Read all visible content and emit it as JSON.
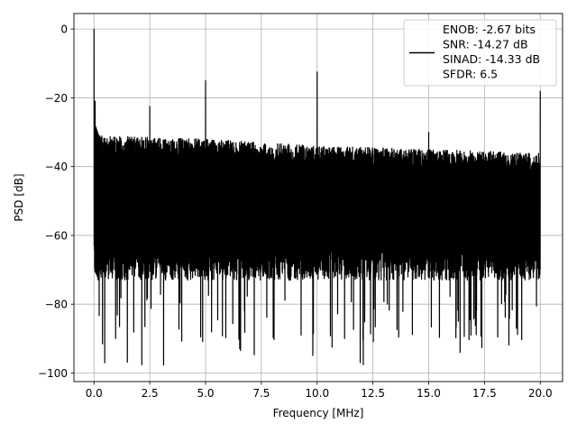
{
  "chart_data": {
    "type": "line",
    "title": "",
    "xlabel": "Frequency [MHz]",
    "ylabel": "PSD [dB]",
    "xlim": [
      -0.9,
      21.0
    ],
    "ylim": [
      -102.5,
      4.5
    ],
    "grid": true,
    "legend_placement": "top-right",
    "line_color": "#000000",
    "x_ticks": [
      0.0,
      2.5,
      5.0,
      7.5,
      10.0,
      12.5,
      15.0,
      17.5,
      20.0
    ],
    "x_tick_labels": [
      "0.0",
      "2.5",
      "5.0",
      "7.5",
      "10.0",
      "12.5",
      "15.0",
      "17.5",
      "20.0"
    ],
    "y_ticks": [
      0,
      -20,
      -40,
      -60,
      -80,
      -100
    ],
    "y_tick_labels": [
      "0",
      "−20",
      "−40",
      "−60",
      "−80",
      "−100"
    ],
    "legend": {
      "lines": [
        "ENOB: -2.67 bits",
        "SNR: -14.27 dB",
        "SINAD: -14.33 dB",
        "SFDR: 6.5"
      ]
    },
    "series": [
      {
        "x_range": [
          0.0,
          20.0
        ],
        "noise_top": [
          [
            0.0,
            -31
          ],
          [
            5.0,
            -32
          ],
          [
            10.0,
            -34
          ],
          [
            15.0,
            -35
          ],
          [
            20.0,
            -36
          ]
        ],
        "noise_dense_bottom": -69,
        "noise_min_dips": -98,
        "peaks": [
          {
            "x": 0.0,
            "y": 0.0
          },
          {
            "x": 0.05,
            "y": -21
          },
          {
            "x": 2.5,
            "y": -22.5
          },
          {
            "x": 5.0,
            "y": -15
          },
          {
            "x": 10.0,
            "y": -12.5
          },
          {
            "x": 15.0,
            "y": -30
          },
          {
            "x": 20.0,
            "y": -18
          }
        ]
      }
    ]
  }
}
